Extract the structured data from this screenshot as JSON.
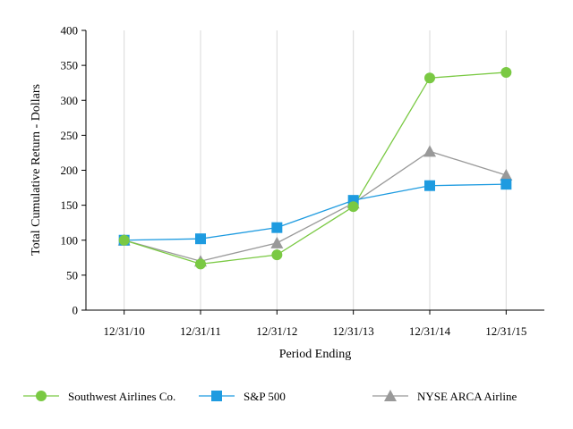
{
  "chart_data": {
    "type": "line",
    "xlabel": "Period Ending",
    "ylabel": "Total Cumulative Return - Dollars",
    "categories": [
      "12/31/10",
      "12/31/11",
      "12/31/12",
      "12/31/13",
      "12/31/14",
      "12/31/15"
    ],
    "ylim": [
      0,
      400
    ],
    "yticks": [
      0,
      50,
      100,
      150,
      200,
      250,
      300,
      350,
      400
    ],
    "grid": "vertical",
    "legend_position": "bottom",
    "series": [
      {
        "name": "Southwest Airlines Co.",
        "values": [
          100,
          66,
          79,
          148,
          332,
          340
        ],
        "color": "#7ac943",
        "marker": "circle"
      },
      {
        "name": "S&P 500",
        "values": [
          100,
          102,
          118,
          157,
          178,
          180
        ],
        "color": "#1e9be0",
        "marker": "square"
      },
      {
        "name": "NYSE ARCA Airline",
        "values": [
          100,
          70,
          96,
          153,
          227,
          193
        ],
        "color": "#999999",
        "marker": "triangle"
      }
    ]
  }
}
